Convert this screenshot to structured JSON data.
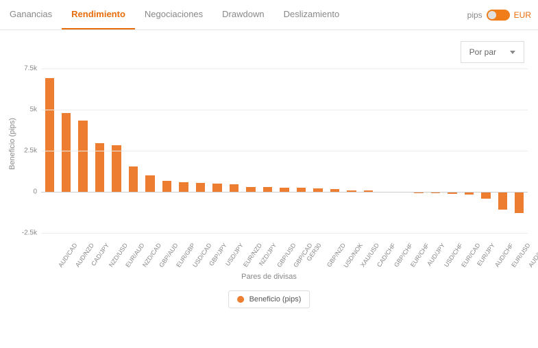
{
  "tabs": [
    "Ganancias",
    "Rendimiento",
    "Negociaciones",
    "Drawdown",
    "Deslizamiento"
  ],
  "active_tab": 1,
  "toggle": {
    "left_label": "pips",
    "right_label": "EUR",
    "on_right": false
  },
  "selector": {
    "label": "Por par"
  },
  "chart": {
    "type": "bar",
    "y_label": "Beneficio (pips)",
    "x_label": "Pares de divisas",
    "legend_label": "Beneficio (pips)",
    "y_min": -2500,
    "y_max": 7500,
    "y_ticks": [
      -2500,
      0,
      2500,
      5000,
      7500
    ],
    "y_tick_labels": [
      "-2.5k",
      "0",
      "2.5k",
      "5k",
      "7.5k"
    ],
    "bar_color": "#ed7d31",
    "grid_color": "#ececec",
    "background_color": "#ffffff",
    "axis_text_color": "#888888",
    "bar_gap_ratio": 0.45,
    "categories": [
      "AUD/CAD",
      "AUD/NZD",
      "CAD/JPY",
      "NZD/USD",
      "EUR/AUD",
      "NZD/CAD",
      "GBP/AUD",
      "EUR/GBP",
      "USD/CAD",
      "GBP/JPY",
      "USD/JPY",
      "EUR/NZD",
      "NZD/JPY",
      "GBP/USD",
      "GBP/CAD",
      "GER30",
      "GBP/NZD",
      "USD/NOK",
      "XAU/USD",
      "CAD/CHF",
      "GBP/CHF",
      "EUR/CHF",
      "AUD/JPY",
      "USD/CHF",
      "EUR/CAD",
      "EUR/JPY",
      "AUD/CHF",
      "EUR/USD",
      "AUD/USD"
    ],
    "values": [
      6900,
      4800,
      4350,
      2950,
      2850,
      1550,
      1000,
      650,
      600,
      550,
      520,
      450,
      300,
      290,
      270,
      250,
      200,
      150,
      100,
      80,
      -30,
      -50,
      -70,
      -90,
      -120,
      -180,
      -400,
      -1100,
      -1300
    ]
  }
}
